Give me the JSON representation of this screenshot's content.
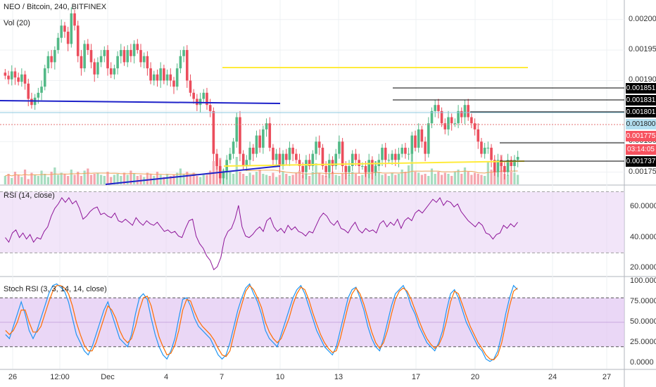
{
  "header": {
    "symbol_title": "NEO / Bitcoin, 240, BITFINEX",
    "volume_title": "Vol (20)",
    "rsi_title": "RSI (14, close)",
    "stoch_title": "Stoch RSI (3, 3, 14, 14, close)"
  },
  "colors": {
    "up": "#53b987",
    "down": "#eb4d5c",
    "volume_up": "#a6dcbf",
    "volume_down": "#f5a6ae",
    "volume_ma": "#f0a45c",
    "rsi": "#8e1599",
    "rsi_band": "#e9d4f5",
    "stoch_k": "#2196f3",
    "stoch_d": "#ff6d00",
    "stoch_band": "#e1c6f2",
    "yellow_line": "#ffeb3b",
    "blue_line": "#1e22c9",
    "black_line": "#000000",
    "close_line": "#e57373",
    "prev_close": "#8ec8e0"
  },
  "chart_data": [
    {
      "type": "candlestick",
      "title": "NEO / Bitcoin, 240, BITFINEX",
      "y_ticks": [
        "0.002000",
        "0.001950",
        "0.001900",
        "0.001850",
        "0.001800",
        "0.001750"
      ],
      "y_range": [
        0.00173,
        0.002025
      ],
      "x_ticks": [
        "26",
        "12:00",
        "Dec",
        "4",
        "7",
        "10",
        "13",
        "17",
        "20",
        "24",
        "27"
      ],
      "price_tags": [
        {
          "value": "0.001851",
          "style": "dark"
        },
        {
          "value": "0.001831",
          "style": "dark"
        },
        {
          "value": "0.001801",
          "style": "dark"
        },
        {
          "value": "0.001800",
          "style": "blue"
        },
        {
          "value": "0.001775",
          "style": "red"
        },
        {
          "value": "03:14:05",
          "style": "red"
        },
        {
          "value": "0.001737",
          "style": "dark"
        }
      ],
      "closes": [
        0.001908,
        0.001902,
        0.001915,
        0.001905,
        0.001898,
        0.00191,
        0.001895,
        0.00187,
        0.00186,
        0.001872,
        0.00188,
        0.00189,
        0.00192,
        0.00194,
        0.00193,
        0.00195,
        0.00197,
        0.00199,
        0.00198,
        0.00196,
        0.00201,
        0.00199,
        0.00194,
        0.00192,
        0.00196,
        0.00195,
        0.00193,
        0.00191,
        0.00193,
        0.00194,
        0.00195,
        0.00192,
        0.00191,
        0.00192,
        0.00194,
        0.00195,
        0.00193,
        0.00195,
        0.00194,
        0.00196,
        0.00195,
        0.00193,
        0.00194,
        0.00192,
        0.0019,
        0.00191,
        0.0019,
        0.00192,
        0.0019,
        0.00191,
        0.0019,
        0.00189,
        0.00192,
        0.00194,
        0.00195,
        0.0019,
        0.00188,
        0.00187,
        0.00186,
        0.00187,
        0.00188,
        0.00186,
        0.00185,
        0.00178,
        0.00176,
        0.00174,
        0.00175,
        0.00177,
        0.00178,
        0.0018,
        0.00184,
        0.00178,
        0.00176,
        0.00177,
        0.00179,
        0.00178,
        0.00181,
        0.00179,
        0.00182,
        0.00183,
        0.00179,
        0.00177,
        0.00178,
        0.00176,
        0.00178,
        0.00177,
        0.00179,
        0.00178,
        0.00177,
        0.00176,
        0.00175,
        0.00177,
        0.00176,
        0.00178,
        0.0018,
        0.00179,
        0.00176,
        0.00175,
        0.00177,
        0.00176,
        0.00178,
        0.0018,
        0.00176,
        0.00175,
        0.00176,
        0.00178,
        0.00177,
        0.00176,
        0.00176,
        0.00175,
        0.00177,
        0.00175,
        0.00176,
        0.00177,
        0.00179,
        0.00177,
        0.00177,
        0.00178,
        0.00177,
        0.00178,
        0.00179,
        0.00178,
        0.00178,
        0.00181,
        0.00179,
        0.00182,
        0.0018,
        0.00178,
        0.00183,
        0.00185,
        0.00186,
        0.00185,
        0.00183,
        0.00182,
        0.00184,
        0.00183,
        0.00183,
        0.00185,
        0.00184,
        0.00186,
        0.00184,
        0.00183,
        0.00182,
        0.0018,
        0.00178,
        0.00179,
        0.00179,
        0.00177,
        0.00175,
        0.00177,
        0.00176,
        0.00175,
        0.00177,
        0.00176,
        0.00177,
        0.001775
      ],
      "volume": [
        8,
        10,
        6,
        12,
        9,
        7,
        14,
        5,
        11,
        9,
        8,
        13,
        10,
        7,
        12,
        16,
        9,
        11,
        10,
        8,
        14,
        9,
        12,
        8,
        13,
        15,
        9,
        10,
        11,
        9,
        8,
        12,
        7,
        9,
        10,
        8,
        11,
        9,
        13,
        10,
        8,
        9,
        7,
        11,
        10,
        8,
        12,
        9,
        7,
        10,
        8,
        9,
        11,
        15,
        10,
        12,
        9,
        11,
        8,
        7,
        10,
        9,
        13,
        22,
        18,
        25,
        14,
        16,
        12,
        10,
        26,
        12,
        10,
        8,
        11,
        9,
        12,
        14,
        10,
        9,
        8,
        11,
        7,
        9,
        12,
        10,
        8,
        9,
        11,
        13,
        9,
        10,
        8,
        12,
        20,
        11,
        9,
        8,
        10,
        12,
        9,
        8,
        10,
        11,
        9,
        12,
        10,
        8,
        9,
        15,
        10,
        11,
        22,
        12,
        9,
        10,
        8,
        11,
        9,
        10,
        14,
        12,
        18,
        30,
        12,
        11,
        9,
        10,
        8,
        15,
        10,
        12,
        9,
        11,
        10,
        8,
        12,
        14,
        10,
        16,
        12,
        9,
        11,
        10,
        9,
        8,
        22,
        14,
        16,
        12,
        28,
        10,
        9,
        12,
        11,
        9
      ],
      "horizontal_lines": [
        {
          "value": 0.001851,
          "color": "black"
        },
        {
          "value": 0.001831,
          "color": "black"
        },
        {
          "value": 0.001801,
          "color": "black"
        },
        {
          "value": 0.001737,
          "color": "black"
        },
        {
          "value": 0.0019,
          "color": "yellow"
        }
      ]
    },
    {
      "type": "line",
      "title": "RSI (14, close)",
      "y_ticks": [
        "60.0000",
        "40.0000",
        "20.0000"
      ],
      "y_range": [
        15,
        72
      ],
      "bands": [
        70,
        30
      ],
      "values": [
        40,
        37,
        43,
        45,
        40,
        43,
        39,
        42,
        37,
        40,
        39,
        44,
        47,
        54,
        59,
        62,
        66,
        63,
        66,
        62,
        64,
        59,
        52,
        54,
        57,
        59,
        60,
        55,
        56,
        54,
        53,
        56,
        51,
        50,
        52,
        50,
        48,
        53,
        50,
        48,
        51,
        49,
        48,
        50,
        47,
        44,
        45,
        43,
        44,
        41,
        40,
        46,
        51,
        52,
        41,
        36,
        33,
        28,
        25,
        19,
        21,
        27,
        39,
        44,
        46,
        52,
        61,
        47,
        41,
        40,
        42,
        45,
        47,
        44,
        51,
        53,
        47,
        44,
        46,
        43,
        48,
        45,
        47,
        44,
        43,
        41,
        44,
        43,
        48,
        53,
        56,
        54,
        50,
        48,
        51,
        46,
        45,
        43,
        47,
        50,
        45,
        43,
        46,
        44,
        45,
        43,
        49,
        51,
        47,
        50,
        48,
        52,
        46,
        51,
        53,
        51,
        56,
        58,
        56,
        59,
        62,
        65,
        63,
        66,
        61,
        64,
        63,
        60,
        62,
        57,
        54,
        51,
        49,
        47,
        50,
        48,
        43,
        42,
        39,
        42,
        43,
        48,
        46,
        49,
        47,
        50
      ]
    },
    {
      "type": "line",
      "title": "Stoch RSI (3, 3, 14, 14, close)",
      "y_ticks": [
        "100.0000",
        "75.0000",
        "50.0000",
        "25.0000",
        "0.0000"
      ],
      "y_range": [
        0,
        100
      ],
      "bands": [
        80,
        20
      ],
      "series": [
        {
          "name": "K",
          "values": [
            35,
            30,
            45,
            60,
            75,
            60,
            40,
            30,
            40,
            55,
            70,
            85,
            95,
            97,
            93,
            88,
            75,
            55,
            35,
            25,
            15,
            10,
            20,
            35,
            50,
            65,
            75,
            60,
            45,
            30,
            25,
            20,
            35,
            60,
            80,
            85,
            78,
            55,
            35,
            20,
            10,
            5,
            15,
            30,
            55,
            78,
            80,
            70,
            55,
            45,
            40,
            35,
            30,
            20,
            10,
            5,
            10,
            25,
            45,
            65,
            80,
            92,
            97,
            85,
            75,
            60,
            40,
            30,
            25,
            20,
            35,
            50,
            65,
            80,
            90,
            95,
            85,
            70,
            55,
            40,
            30,
            20,
            15,
            10,
            20,
            40,
            60,
            80,
            90,
            93,
            80,
            65,
            45,
            30,
            20,
            15,
            30,
            50,
            70,
            85,
            90,
            95,
            85,
            70,
            60,
            45,
            35,
            25,
            20,
            15,
            25,
            40,
            65,
            85,
            90,
            80,
            65,
            50,
            40,
            30,
            20,
            15,
            5,
            2,
            5,
            15,
            35,
            60,
            80,
            95,
            90
          ]
        },
        {
          "name": "D",
          "values": [
            40,
            35,
            40,
            50,
            65,
            65,
            50,
            38,
            38,
            45,
            60,
            75,
            88,
            95,
            95,
            92,
            85,
            70,
            50,
            35,
            22,
            15,
            15,
            25,
            40,
            55,
            70,
            65,
            55,
            40,
            30,
            25,
            30,
            45,
            65,
            80,
            82,
            70,
            50,
            32,
            20,
            10,
            12,
            22,
            40,
            65,
            78,
            76,
            63,
            52,
            45,
            40,
            35,
            28,
            18,
            10,
            8,
            15,
            35,
            55,
            72,
            88,
            95,
            90,
            80,
            68,
            50,
            38,
            30,
            25,
            30,
            42,
            55,
            72,
            85,
            93,
            90,
            78,
            62,
            48,
            35,
            25,
            18,
            13,
            15,
            30,
            50,
            70,
            85,
            92,
            85,
            72,
            55,
            38,
            25,
            18,
            25,
            40,
            60,
            78,
            88,
            92,
            88,
            78,
            65,
            52,
            40,
            30,
            23,
            18,
            22,
            33,
            52,
            75,
            88,
            85,
            72,
            58,
            45,
            35,
            25,
            18,
            10,
            5,
            4,
            10,
            25,
            48,
            70,
            88,
            92
          ]
        }
      ]
    }
  ]
}
